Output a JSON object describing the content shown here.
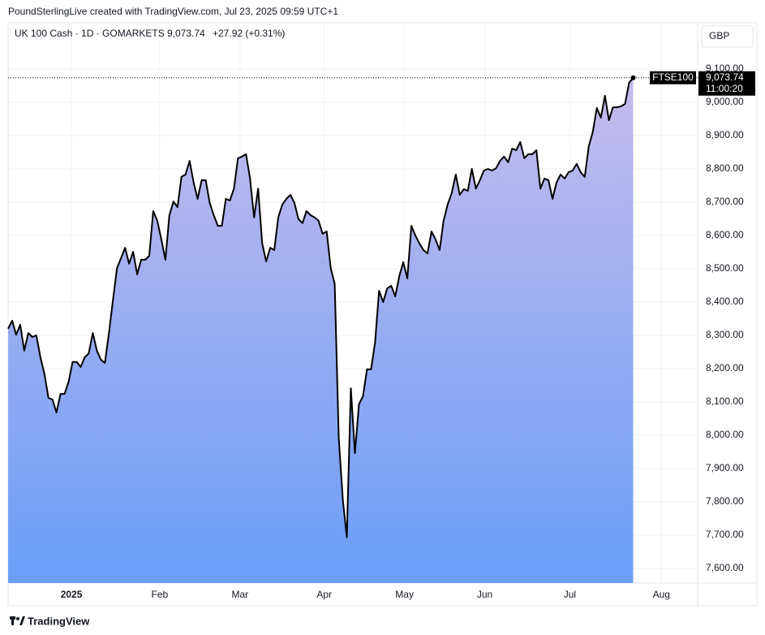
{
  "credit": "PoundSterlingLive created with TradingView.com, Jul 23, 2025 09:59 UTC+1",
  "legend": {
    "symbol": "UK 100 Cash · 1D · GOMARKETS",
    "price": "9,073.74",
    "change": "+27.92 (+0.31%)"
  },
  "currency": "GBP",
  "footer": "TradingView",
  "chart_data": {
    "type": "area",
    "line_color": "#000000",
    "area_colors": [
      "#c6bbec",
      "#6a9ef8"
    ],
    "grid": true,
    "price_tag": {
      "name": "FTSE100",
      "price": "9,073.74",
      "countdown": "11:00:20"
    },
    "values": [
      8320,
      8344,
      8302,
      8332,
      8254,
      8307,
      8295,
      8300,
      8234,
      8185,
      8112,
      8107,
      8068,
      8124,
      8124,
      8161,
      8220,
      8220,
      8205,
      8234,
      8246,
      8307,
      8254,
      8227,
      8217,
      8307,
      8405,
      8502,
      8532,
      8563,
      8515,
      8551,
      8483,
      8527,
      8527,
      8539,
      8673,
      8644,
      8588,
      8527,
      8661,
      8702,
      8685,
      8776,
      8783,
      8824,
      8759,
      8710,
      8766,
      8766,
      8698,
      8661,
      8629,
      8629,
      8710,
      8705,
      8741,
      8832,
      8837,
      8844,
      8771,
      8654,
      8741,
      8576,
      8522,
      8563,
      8556,
      8654,
      8693,
      8710,
      8722,
      8698,
      8649,
      8637,
      8673,
      8661,
      8654,
      8644,
      8605,
      8612,
      8502,
      8454,
      7990,
      7807,
      7693,
      8141,
      7946,
      8093,
      8117,
      8198,
      8198,
      8278,
      8434,
      8400,
      8441,
      8449,
      8417,
      8478,
      8520,
      8471,
      8629,
      8600,
      8576,
      8556,
      8546,
      8612,
      8588,
      8556,
      8644,
      8693,
      8727,
      8783,
      8722,
      8739,
      8734,
      8800,
      8741,
      8766,
      8795,
      8800,
      8795,
      8802,
      8824,
      8837,
      8820,
      8861,
      8856,
      8881,
      8832,
      8844,
      8844,
      8856,
      8741,
      8771,
      8766,
      8710,
      8759,
      8783,
      8771,
      8790,
      8795,
      8815,
      8790,
      8776,
      8868,
      8912,
      8983,
      8954,
      9020,
      8946,
      8985,
      8985,
      8988,
      8995,
      9059,
      9073.74
    ],
    "xlim": [
      0,
      171
    ],
    "xticks": [
      {
        "value": 15.7,
        "label": "2025"
      },
      {
        "value": 37.6,
        "label": "Feb"
      },
      {
        "value": 57.5,
        "label": "Mar"
      },
      {
        "value": 78.4,
        "label": "Apr"
      },
      {
        "value": 98.3,
        "label": "May"
      },
      {
        "value": 118.2,
        "label": "Jun"
      },
      {
        "value": 139.3,
        "label": "Jul"
      },
      {
        "value": 162,
        "label": "Aug"
      }
    ],
    "ylim": [
      7556,
      9239
    ],
    "yticks": [
      {
        "value": 7600,
        "label": "7,600.00"
      },
      {
        "value": 7700,
        "label": "7,700.00"
      },
      {
        "value": 7800,
        "label": "7,800.00"
      },
      {
        "value": 7900,
        "label": "7,900.00"
      },
      {
        "value": 8000,
        "label": "8,000.00"
      },
      {
        "value": 8100,
        "label": "8,100.00"
      },
      {
        "value": 8200,
        "label": "8,200.00"
      },
      {
        "value": 8300,
        "label": "8,300.00"
      },
      {
        "value": 8400,
        "label": "8,400.00"
      },
      {
        "value": 8500,
        "label": "8,500.00"
      },
      {
        "value": 8600,
        "label": "8,600.00"
      },
      {
        "value": 8700,
        "label": "8,700.00"
      },
      {
        "value": 8800,
        "label": "8,800.00"
      },
      {
        "value": 8900,
        "label": "8,900.00"
      },
      {
        "value": 9000,
        "label": "9,000.00"
      },
      {
        "value": 9100,
        "label": "9,100.00"
      }
    ]
  }
}
